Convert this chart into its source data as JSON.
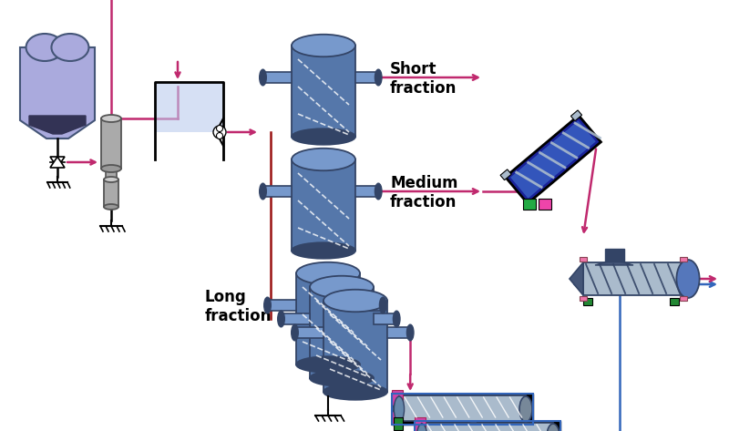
{
  "bg_color": "#ffffff",
  "pink": "#c0296e",
  "dark_red": "#991111",
  "blue": "#3366bb",
  "label_fontsize": 12,
  "label_fontweight": "bold",
  "fig_width": 8.0,
  "fig_height": 4.73,
  "text_short": "Short\nfraction",
  "text_medium": "Medium\nfraction",
  "text_long": "Long\nfraction"
}
